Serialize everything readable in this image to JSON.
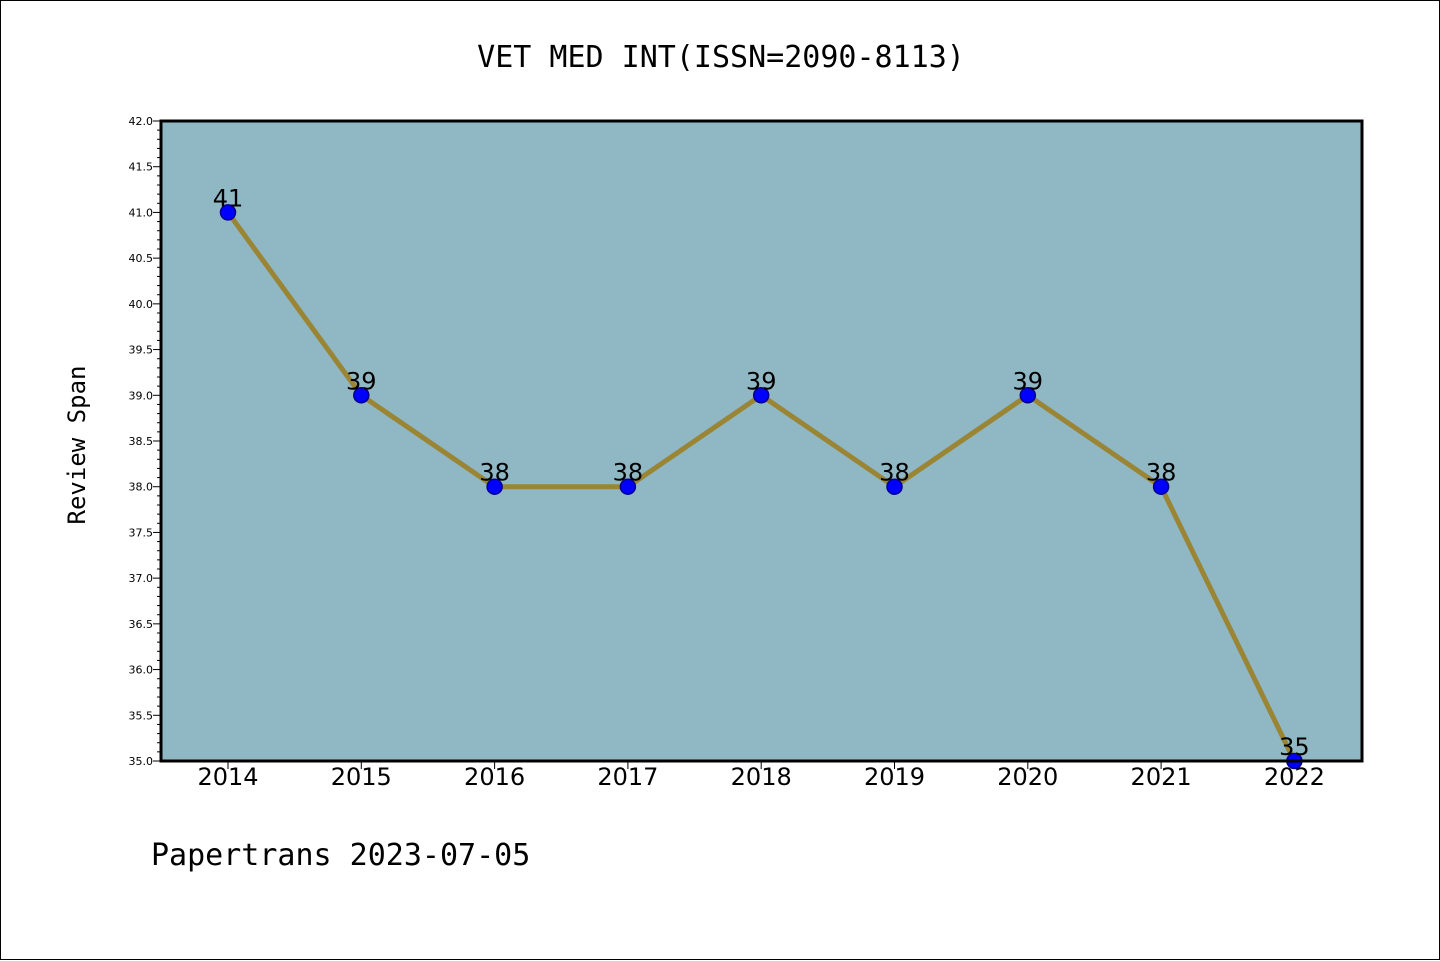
{
  "footer": "Papertrans 2023-07-05",
  "chart_data": {
    "type": "line",
    "title": "VET MED INT(ISSN=2090-8113)",
    "xlabel": "",
    "ylabel": "Review Span",
    "x": [
      "2014",
      "2015",
      "2016",
      "2017",
      "2018",
      "2019",
      "2020",
      "2021",
      "2022"
    ],
    "values": [
      41,
      39,
      38,
      38,
      39,
      38,
      39,
      38,
      35
    ],
    "data_labels": [
      "41",
      "39",
      "38",
      "38",
      "39",
      "38",
      "39",
      "38",
      "35"
    ],
    "ylim": [
      35.0,
      42.0
    ],
    "y_ticks": [
      "35.0",
      "35.5",
      "36.0",
      "36.5",
      "37.0",
      "37.5",
      "38.0",
      "38.5",
      "39.0",
      "39.5",
      "40.0",
      "40.5",
      "41.0",
      "41.5",
      "42.0"
    ],
    "grid": false,
    "legend": "none",
    "colors": {
      "plot_background": "#8fb7c4",
      "line": "#9a8535",
      "marker": "#0000ff",
      "marker_edge": "#00008b"
    }
  }
}
